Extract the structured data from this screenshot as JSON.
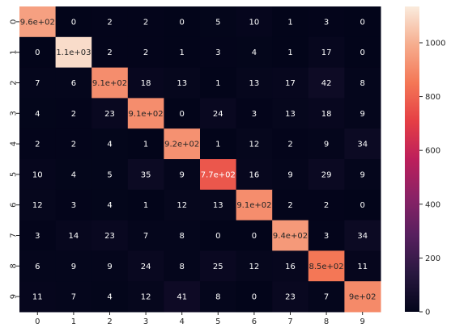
{
  "chart_data": {
    "type": "heatmap",
    "title": "",
    "xlabel": "",
    "ylabel": "",
    "x_categories": [
      "0",
      "1",
      "2",
      "3",
      "4",
      "5",
      "6",
      "7",
      "8",
      "9"
    ],
    "y_categories": [
      "0",
      "1",
      "2",
      "3",
      "4",
      "5",
      "6",
      "7",
      "8",
      "9"
    ],
    "values": [
      [
        960,
        0,
        2,
        2,
        0,
        5,
        10,
        1,
        3,
        0
      ],
      [
        0,
        1100,
        2,
        2,
        1,
        3,
        4,
        1,
        17,
        0
      ],
      [
        7,
        6,
        910,
        18,
        13,
        1,
        13,
        17,
        42,
        8
      ],
      [
        4,
        2,
        23,
        910,
        0,
        24,
        3,
        13,
        18,
        9
      ],
      [
        2,
        2,
        4,
        1,
        920,
        1,
        12,
        2,
        9,
        34
      ],
      [
        10,
        4,
        5,
        35,
        9,
        770,
        16,
        9,
        29,
        9
      ],
      [
        12,
        3,
        4,
        1,
        12,
        13,
        910,
        2,
        2,
        0
      ],
      [
        3,
        14,
        23,
        7,
        8,
        0,
        0,
        940,
        3,
        34
      ],
      [
        6,
        9,
        9,
        24,
        8,
        25,
        12,
        16,
        850,
        11
      ],
      [
        11,
        7,
        4,
        12,
        41,
        8,
        0,
        23,
        7,
        900
      ]
    ],
    "annotations": [
      [
        "9.6e+02",
        "0",
        "2",
        "2",
        "0",
        "5",
        "10",
        "1",
        "3",
        "0"
      ],
      [
        "0",
        "1.1e+03",
        "2",
        "2",
        "1",
        "3",
        "4",
        "1",
        "17",
        "0"
      ],
      [
        "7",
        "6",
        "9.1e+02",
        "18",
        "13",
        "1",
        "13",
        "17",
        "42",
        "8"
      ],
      [
        "4",
        "2",
        "23",
        "9.1e+02",
        "0",
        "24",
        "3",
        "13",
        "18",
        "9"
      ],
      [
        "2",
        "2",
        "4",
        "1",
        "9.2e+02",
        "1",
        "12",
        "2",
        "9",
        "34"
      ],
      [
        "10",
        "4",
        "5",
        "35",
        "9",
        "7.7e+02",
        "16",
        "9",
        "29",
        "9"
      ],
      [
        "12",
        "3",
        "4",
        "1",
        "12",
        "13",
        "9.1e+02",
        "2",
        "2",
        "0"
      ],
      [
        "3",
        "14",
        "23",
        "7",
        "8",
        "0",
        "0",
        "9.4e+02",
        "3",
        "34"
      ],
      [
        "6",
        "9",
        "9",
        "24",
        "8",
        "25",
        "12",
        "16",
        "8.5e+02",
        "11"
      ],
      [
        "11",
        "7",
        "4",
        "12",
        "41",
        "8",
        "0",
        "23",
        "7",
        "9e+02"
      ]
    ],
    "colormap": "rocket",
    "color_range": [
      0,
      1135
    ],
    "colorbar_ticks": [
      0,
      200,
      400,
      600,
      800,
      1000
    ],
    "colorbar_tick_labels": [
      "0",
      "200",
      "400",
      "600",
      "800",
      "1000"
    ],
    "grid": false
  }
}
